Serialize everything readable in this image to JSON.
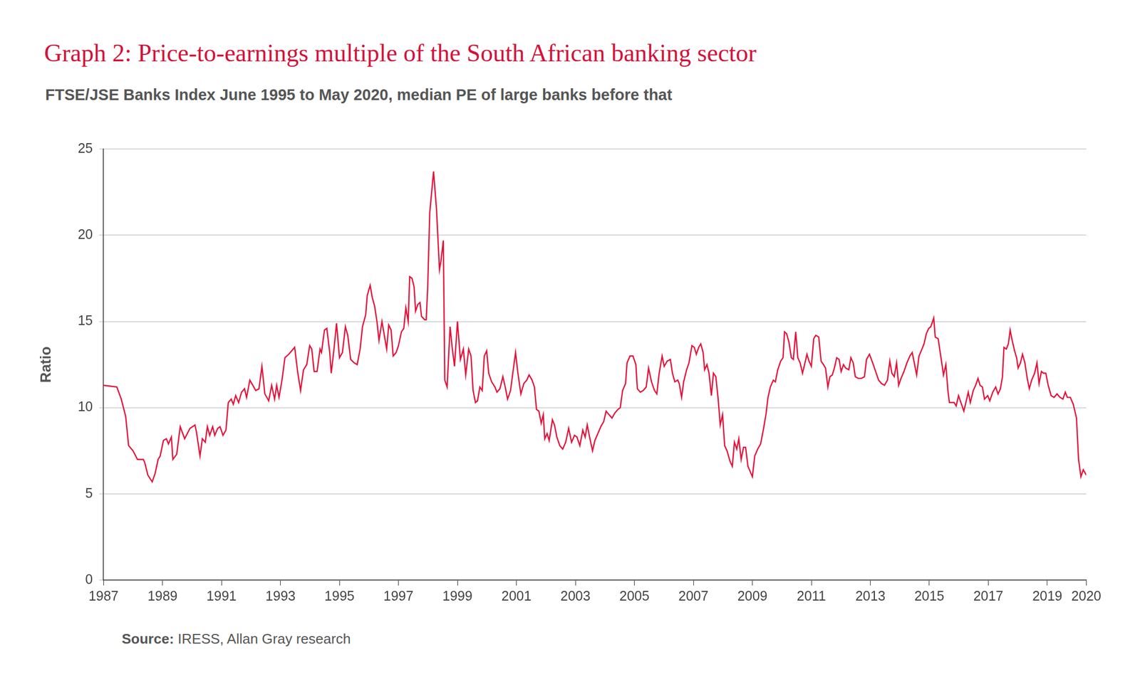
{
  "chart_data": {
    "type": "line",
    "title": "Graph 2: Price-to-earnings multiple of the South African banking sector",
    "subtitle": "FTSE/JSE Banks Index June 1995 to May 2020, median PE of large banks before that",
    "y_label": "Ratio",
    "source_label": "Source:",
    "source": "IRESS, Allan Gray research",
    "color": "#e4123a",
    "grid": true,
    "xlim": [
      1987,
      2020.32
    ],
    "xticks": [
      1987,
      1989,
      1991,
      1993,
      1995,
      1997,
      1999,
      2001,
      2003,
      2005,
      2007,
      2009,
      2011,
      2013,
      2015,
      2017,
      2019,
      {
        "value": 2020.32,
        "label": "2020"
      }
    ],
    "ylim": [
      0,
      25
    ],
    "yticks": [
      0,
      5,
      10,
      15,
      20,
      25
    ],
    "x": [
      1987.0,
      1987.45,
      1987.6,
      1987.75,
      1987.85,
      1988.0,
      1988.15,
      1988.35,
      1988.4,
      1988.5,
      1988.65,
      1988.75,
      1988.85,
      1988.92,
      1989.03,
      1989.13,
      1989.2,
      1989.3,
      1989.35,
      1989.48,
      1989.6,
      1989.75,
      1989.93,
      1990.1,
      1990.15,
      1990.27,
      1990.35,
      1990.45,
      1990.52,
      1990.6,
      1990.7,
      1990.77,
      1990.87,
      1990.95,
      1991.05,
      1991.15,
      1991.23,
      1991.33,
      1991.4,
      1991.48,
      1991.58,
      1991.68,
      1991.78,
      1991.85,
      1991.96,
      1992.06,
      1992.16,
      1992.27,
      1992.37,
      1992.47,
      1992.6,
      1992.7,
      1992.8,
      1992.87,
      1992.95,
      1993.05,
      1993.15,
      1993.28,
      1993.38,
      1993.48,
      1993.58,
      1993.68,
      1993.78,
      1993.89,
      1993.99,
      1994.06,
      1994.14,
      1994.24,
      1994.34,
      1994.39,
      1994.49,
      1994.57,
      1994.67,
      1994.72,
      1994.82,
      1994.9,
      1995.0,
      1995.1,
      1995.2,
      1995.28,
      1995.38,
      1995.5,
      1995.6,
      1995.7,
      1995.78,
      1995.89,
      1995.94,
      1996.04,
      1996.11,
      1996.19,
      1996.27,
      1996.34,
      1996.44,
      1996.52,
      1996.6,
      1996.67,
      1996.75,
      1996.82,
      1996.92,
      1997.0,
      1997.1,
      1997.18,
      1997.25,
      1997.33,
      1997.38,
      1997.46,
      1997.53,
      1997.58,
      1997.66,
      1997.73,
      1997.78,
      1997.89,
      1997.94,
      1997.99,
      1998.06,
      1998.19,
      1998.29,
      1998.39,
      1998.44,
      1998.52,
      1998.57,
      1998.65,
      1998.75,
      1998.82,
      1998.9,
      1999.0,
      1999.1,
      1999.2,
      1999.28,
      1999.38,
      1999.46,
      1999.53,
      1999.61,
      1999.68,
      1999.76,
      1999.84,
      1999.91,
      1999.99,
      2000.06,
      2000.16,
      2000.27,
      2000.34,
      2000.44,
      2000.54,
      2000.62,
      2000.7,
      2000.8,
      2000.9,
      2000.97,
      2001.05,
      2001.15,
      2001.25,
      2001.35,
      2001.43,
      2001.53,
      2001.61,
      2001.68,
      2001.76,
      2001.84,
      2001.91,
      2001.96,
      2002.04,
      2002.11,
      2002.22,
      2002.29,
      2002.37,
      2002.47,
      2002.57,
      2002.67,
      2002.77,
      2002.87,
      2002.97,
      2003.05,
      2003.15,
      2003.25,
      2003.33,
      2003.4,
      2003.48,
      2003.58,
      2003.66,
      2003.76,
      2003.86,
      2003.96,
      2004.04,
      2004.14,
      2004.24,
      2004.34,
      2004.44,
      2004.52,
      2004.6,
      2004.7,
      2004.75,
      2004.85,
      2004.95,
      2005.05,
      2005.1,
      2005.2,
      2005.3,
      2005.4,
      2005.48,
      2005.58,
      2005.68,
      2005.76,
      2005.84,
      2005.94,
      2006.01,
      2006.11,
      2006.22,
      2006.29,
      2006.37,
      2006.47,
      2006.52,
      2006.6,
      2006.67,
      2006.77,
      2006.85,
      2006.95,
      2007.03,
      2007.1,
      2007.18,
      2007.25,
      2007.33,
      2007.38,
      2007.46,
      2007.53,
      2007.61,
      2007.68,
      2007.76,
      2007.84,
      2007.91,
      2007.99,
      2008.06,
      2008.14,
      2008.24,
      2008.32,
      2008.39,
      2008.47,
      2008.54,
      2008.62,
      2008.7,
      2008.77,
      2008.85,
      2008.95,
      2009.0,
      2009.08,
      2009.18,
      2009.28,
      2009.38,
      2009.46,
      2009.53,
      2009.61,
      2009.71,
      2009.78,
      2009.86,
      2009.96,
      2010.04,
      2010.09,
      2010.16,
      2010.24,
      2010.32,
      2010.39,
      2010.47,
      2010.54,
      2010.62,
      2010.7,
      2010.77,
      2010.85,
      2010.92,
      2011.0,
      2011.08,
      2011.15,
      2011.25,
      2011.33,
      2011.41,
      2011.48,
      2011.56,
      2011.63,
      2011.71,
      2011.78,
      2011.86,
      2011.94,
      2012.01,
      2012.09,
      2012.16,
      2012.27,
      2012.34,
      2012.42,
      2012.49,
      2012.59,
      2012.7,
      2012.8,
      2012.87,
      2012.97,
      2013.08,
      2013.18,
      2013.28,
      2013.38,
      2013.48,
      2013.58,
      2013.66,
      2013.73,
      2013.81,
      2013.89,
      2013.96,
      2014.04,
      2014.14,
      2014.24,
      2014.34,
      2014.42,
      2014.49,
      2014.57,
      2014.65,
      2014.75,
      2014.82,
      2014.9,
      2014.98,
      2015.05,
      2015.15,
      2015.2,
      2015.3,
      2015.36,
      2015.43,
      2015.48,
      2015.56,
      2015.63,
      2015.68,
      2015.76,
      2015.84,
      2015.91,
      2015.99,
      2016.09,
      2016.17,
      2016.24,
      2016.32,
      2016.39,
      2016.49,
      2016.57,
      2016.65,
      2016.72,
      2016.8,
      2016.87,
      2016.98,
      2017.05,
      2017.15,
      2017.25,
      2017.33,
      2017.41,
      2017.48,
      2017.53,
      2017.61,
      2017.68,
      2017.74,
      2017.81,
      2017.89,
      2017.96,
      2018.01,
      2018.09,
      2018.16,
      2018.24,
      2018.32,
      2018.39,
      2018.47,
      2018.57,
      2018.65,
      2018.72,
      2018.8,
      2018.87,
      2018.95,
      2019.03,
      2019.13,
      2019.23,
      2019.33,
      2019.43,
      2019.53,
      2019.61,
      2019.68,
      2019.78,
      2019.88,
      2019.99,
      2020.06,
      2020.14,
      2020.22,
      2020.32
    ],
    "values": [
      11.3,
      11.2,
      10.5,
      9.5,
      7.8,
      7.5,
      7.0,
      7.0,
      6.8,
      6.1,
      5.7,
      6.2,
      7.0,
      7.2,
      8.1,
      8.2,
      7.9,
      8.3,
      7.0,
      7.3,
      8.9,
      8.2,
      8.8,
      9.0,
      8.6,
      7.2,
      8.2,
      8.0,
      8.9,
      8.4,
      8.9,
      8.4,
      8.8,
      8.9,
      8.4,
      8.7,
      10.3,
      10.5,
      10.2,
      10.7,
      10.3,
      10.9,
      11.1,
      10.6,
      11.6,
      11.3,
      11.0,
      11.1,
      12.4,
      10.8,
      10.4,
      11.3,
      10.5,
      11.3,
      10.6,
      11.6,
      12.9,
      13.1,
      13.3,
      13.5,
      12.1,
      11.0,
      12.2,
      12.5,
      13.6,
      13.4,
      12.1,
      12.1,
      13.4,
      13.2,
      14.5,
      14.6,
      13.2,
      12.0,
      13.5,
      14.9,
      12.9,
      13.2,
      14.7,
      14.2,
      12.8,
      12.6,
      12.5,
      13.4,
      14.7,
      15.4,
      16.5,
      17.1,
      16.4,
      15.9,
      15.0,
      13.9,
      15.0,
      14.2,
      13.4,
      14.8,
      14.5,
      13.0,
      13.2,
      13.6,
      14.4,
      14.6,
      15.8,
      15.0,
      17.6,
      17.5,
      17.0,
      15.6,
      16.0,
      16.1,
      15.3,
      15.1,
      15.1,
      16.9,
      21.3,
      23.7,
      21.5,
      18.0,
      18.5,
      19.7,
      11.6,
      11.2,
      14.7,
      13.5,
      12.4,
      15.0,
      12.8,
      13.4,
      11.9,
      13.4,
      13.0,
      11.0,
      10.3,
      10.4,
      11.2,
      11.0,
      13.0,
      13.3,
      12.0,
      11.5,
      11.2,
      10.9,
      11.1,
      11.8,
      11.2,
      10.5,
      11.0,
      12.3,
      13.2,
      12.0,
      10.8,
      11.4,
      11.6,
      11.9,
      11.6,
      11.2,
      9.9,
      9.8,
      9.1,
      9.6,
      8.2,
      8.5,
      8.1,
      9.3,
      9.0,
      8.3,
      7.8,
      7.6,
      8.0,
      8.8,
      8.0,
      8.4,
      8.3,
      7.8,
      8.7,
      8.3,
      9.0,
      8.3,
      7.5,
      8.1,
      8.5,
      8.9,
      9.2,
      9.8,
      9.6,
      9.4,
      9.7,
      9.9,
      10.0,
      11.0,
      11.4,
      12.6,
      13.0,
      13.0,
      12.5,
      11.1,
      10.9,
      11.0,
      11.2,
      12.3,
      11.5,
      11.0,
      10.8,
      12.0,
      13.0,
      12.4,
      12.7,
      12.8,
      12.0,
      11.5,
      11.6,
      11.4,
      10.6,
      11.5,
      12.2,
      12.6,
      13.6,
      13.5,
      13.1,
      13.5,
      13.7,
      13.2,
      12.2,
      12.5,
      12.0,
      10.7,
      12.0,
      11.8,
      10.5,
      9.0,
      9.6,
      7.8,
      7.5,
      6.9,
      6.6,
      8.0,
      7.6,
      8.2,
      7.0,
      7.7,
      7.7,
      6.6,
      6.2,
      6.0,
      7.2,
      7.6,
      7.9,
      8.8,
      9.6,
      10.6,
      11.2,
      11.6,
      11.5,
      12.2,
      12.7,
      12.9,
      14.4,
      14.3,
      13.8,
      12.9,
      12.8,
      14.4,
      12.9,
      12.6,
      12.0,
      12.5,
      13.1,
      12.7,
      12.4,
      14.0,
      14.2,
      14.1,
      12.7,
      12.5,
      12.3,
      11.2,
      11.8,
      11.9,
      12.3,
      12.9,
      12.8,
      12.1,
      12.5,
      12.3,
      12.2,
      12.9,
      12.6,
      11.8,
      11.7,
      11.7,
      11.8,
      12.8,
      13.1,
      12.6,
      12.1,
      11.6,
      11.4,
      11.3,
      11.6,
      12.7,
      12.0,
      11.8,
      12.6,
      11.3,
      11.7,
      12.1,
      12.6,
      13.0,
      13.2,
      12.6,
      11.9,
      13.0,
      13.4,
      13.7,
      14.3,
      14.6,
      14.7,
      15.2,
      14.1,
      14.0,
      13.3,
      12.5,
      11.9,
      12.5,
      11.0,
      10.3,
      10.3,
      10.3,
      10.1,
      10.7,
      10.2,
      9.8,
      10.3,
      10.9,
      10.3,
      11.0,
      11.3,
      11.7,
      11.3,
      11.2,
      10.5,
      10.7,
      10.4,
      10.9,
      11.2,
      10.8,
      11.1,
      11.8,
      13.5,
      13.4,
      13.7,
      14.5,
      13.9,
      13.3,
      12.9,
      12.3,
      12.6,
      13.1,
      12.6,
      11.7,
      11.1,
      11.6,
      12.0,
      12.6,
      11.4,
      12.1,
      12.0,
      12.0,
      11.3,
      10.7,
      10.6,
      10.8,
      10.6,
      10.5,
      10.9,
      10.6,
      10.6,
      10.2,
      9.4,
      7.0,
      6.0,
      6.4,
      6.1
    ]
  }
}
